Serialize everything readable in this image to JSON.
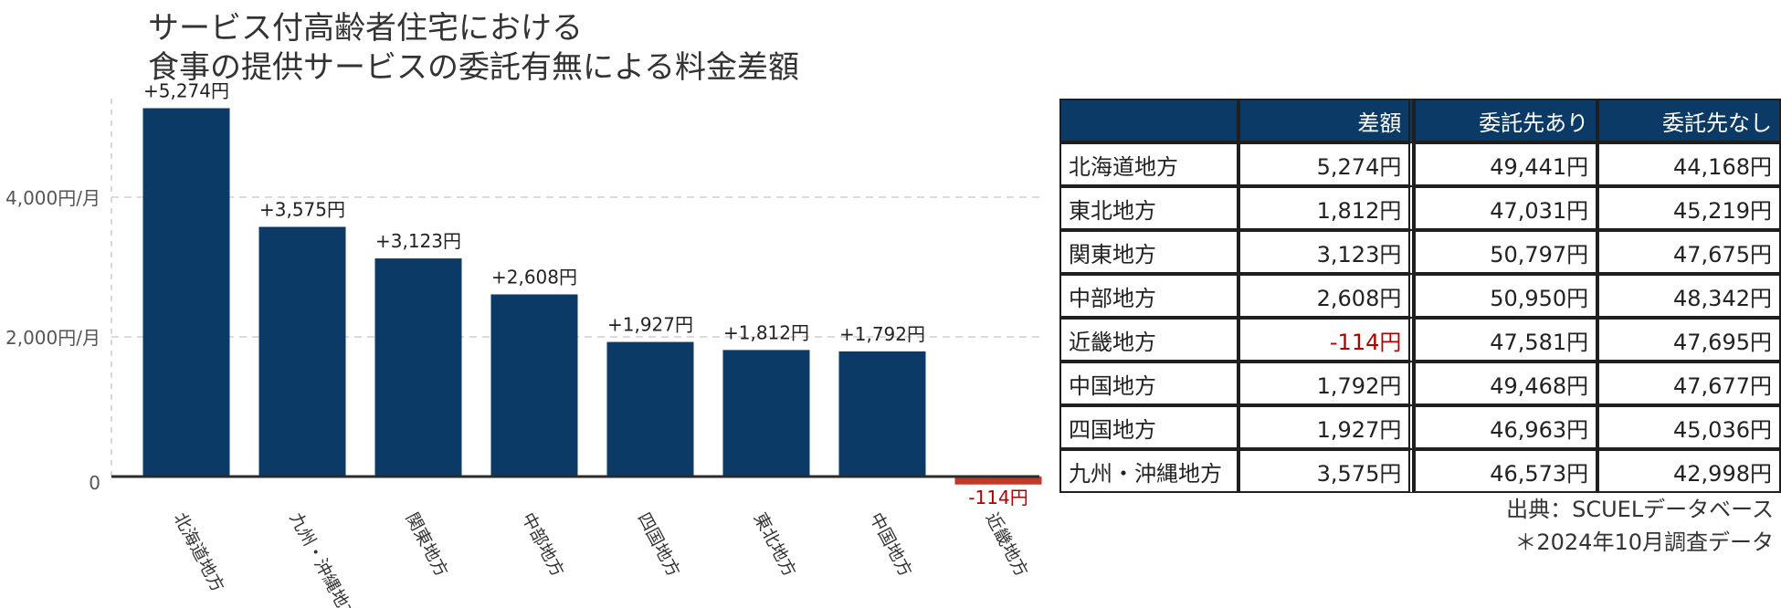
{
  "title": {
    "line1": "サービス付高齢者住宅における",
    "line2": "食事の提供サービスの委託有無による料金差額"
  },
  "colors": {
    "bar": "#0b3a66",
    "negative": "#c0392b",
    "neg_text": "#b30000",
    "header_bg": "#0b3a66"
  },
  "chart_data": {
    "type": "bar",
    "categories": [
      "北海道地方",
      "九州・沖縄地方",
      "関東地方",
      "中部地方",
      "四国地方",
      "東北地方",
      "中国地方",
      "近畿地方"
    ],
    "values": [
      5274,
      3575,
      3123,
      2608,
      1927,
      1812,
      1792,
      -114
    ],
    "data_labels": [
      "+5,274円",
      "+3,575円",
      "+3,123円",
      "+2,608円",
      "+1,927円",
      "+1,812円",
      "+1,792円",
      "-114円"
    ],
    "y_ticks": [
      0,
      2000,
      4000
    ],
    "y_tick_labels": [
      "0",
      "2,000円/月",
      "4,000円/月"
    ],
    "ylim": [
      -300,
      6000
    ],
    "grid": true
  },
  "table": {
    "headers": [
      "",
      "差額",
      "委託先あり",
      "委託先なし"
    ],
    "rows": [
      {
        "region": "北海道地方",
        "diff": "5,274円",
        "with": "49,441円",
        "without": "44,168円"
      },
      {
        "region": "東北地方",
        "diff": "1,812円",
        "with": "47,031円",
        "without": "45,219円"
      },
      {
        "region": "関東地方",
        "diff": "3,123円",
        "with": "50,797円",
        "without": "47,675円"
      },
      {
        "region": "中部地方",
        "diff": "2,608円",
        "with": "50,950円",
        "without": "48,342円"
      },
      {
        "region": "近畿地方",
        "diff": "-114円",
        "with": "47,581円",
        "without": "47,695円",
        "negative": true
      },
      {
        "region": "中国地方",
        "diff": "1,792円",
        "with": "49,468円",
        "without": "47,677円"
      },
      {
        "region": "四国地方",
        "diff": "1,927円",
        "with": "46,963円",
        "without": "45,036円"
      },
      {
        "region": "九州・沖縄地方",
        "diff": "3,575円",
        "with": "46,573円",
        "without": "42,998円"
      }
    ]
  },
  "source": {
    "line1": "出典：SCUELデータベース",
    "line2": "＊2024年10月調査データ"
  }
}
